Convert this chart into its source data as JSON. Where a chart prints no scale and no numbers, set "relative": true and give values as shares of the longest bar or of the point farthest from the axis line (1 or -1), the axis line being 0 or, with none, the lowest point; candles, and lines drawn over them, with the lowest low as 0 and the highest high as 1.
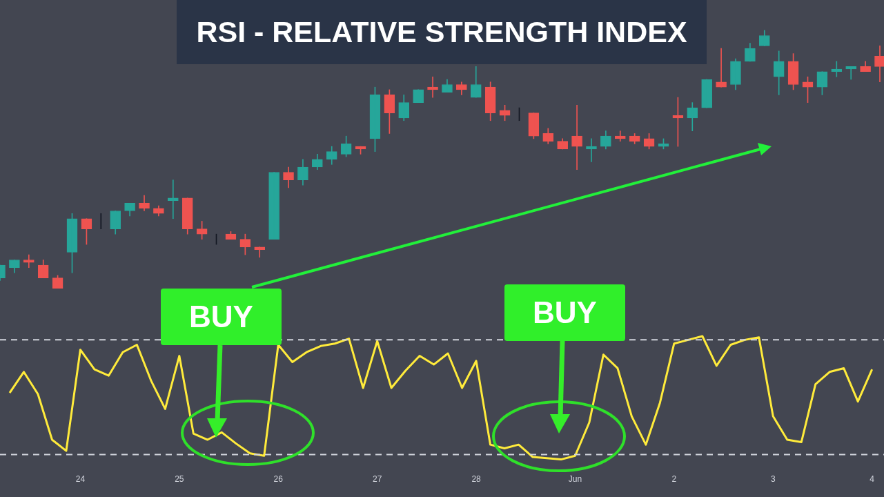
{
  "chart_data": [
    {
      "type": "candlestick",
      "title": "RSI - RELATIVE STRENGTH INDEX",
      "relative": true,
      "categories": [
        null,
        null,
        null,
        null,
        null,
        null,
        null,
        null,
        null,
        null,
        null,
        null,
        null,
        null,
        null,
        null,
        null,
        null,
        null,
        null,
        null,
        null,
        null,
        null,
        null,
        null,
        null,
        null,
        null,
        null,
        null,
        null,
        null,
        null,
        null,
        null,
        null,
        null,
        null,
        null,
        null,
        null,
        null,
        null,
        null,
        null,
        null,
        null,
        null,
        null,
        null,
        null,
        null,
        null,
        null,
        null,
        null,
        null,
        null,
        null,
        null,
        null
      ],
      "ohlc": [
        [
          0.04,
          0.09,
          0.03,
          0.09
        ],
        [
          0.08,
          0.11,
          0.06,
          0.11
        ],
        [
          0.11,
          0.13,
          0.08,
          0.1
        ],
        [
          0.09,
          0.11,
          0.04,
          0.04
        ],
        [
          0.04,
          0.05,
          0,
          0
        ],
        [
          0.14,
          0.29,
          0.06,
          0.27
        ],
        [
          0.27,
          0.27,
          0.17,
          0.23
        ],
        [
          0.23,
          0.29,
          0.23,
          0.23
        ],
        [
          0.23,
          0.3,
          0.21,
          0.3
        ],
        [
          0.3,
          0.33,
          0.28,
          0.33
        ],
        [
          0.33,
          0.36,
          0.3,
          0.31
        ],
        [
          0.31,
          0.32,
          0.28,
          0.29
        ],
        [
          0.34,
          0.42,
          0.27,
          0.35
        ],
        [
          0.35,
          0.35,
          0.21,
          0.23
        ],
        [
          0.23,
          0.26,
          0.19,
          0.21
        ],
        [
          0.21,
          0.21,
          0.17,
          0.21
        ],
        [
          0.21,
          0.22,
          0.19,
          0.19
        ],
        [
          0.19,
          0.21,
          0.13,
          0.16
        ],
        [
          0.16,
          0.16,
          0.12,
          0.15
        ],
        [
          0.19,
          0.45,
          0.19,
          0.45
        ],
        [
          0.45,
          0.47,
          0.39,
          0.42
        ],
        [
          0.42,
          0.5,
          0.4,
          0.47
        ],
        [
          0.47,
          0.52,
          0.46,
          0.5
        ],
        [
          0.5,
          0.55,
          0.48,
          0.53
        ],
        [
          0.52,
          0.59,
          0.51,
          0.56
        ],
        [
          0.55,
          0.55,
          0.52,
          0.54
        ],
        [
          0.58,
          0.78,
          0.53,
          0.75
        ],
        [
          0.75,
          0.77,
          0.6,
          0.68
        ],
        [
          0.66,
          0.75,
          0.65,
          0.72
        ],
        [
          0.72,
          0.77,
          0.72,
          0.77
        ],
        [
          0.78,
          0.82,
          0.74,
          0.77
        ],
        [
          0.76,
          0.81,
          0.76,
          0.79
        ],
        [
          0.79,
          0.8,
          0.75,
          0.77
        ],
        [
          0.74,
          0.86,
          0.74,
          0.79
        ],
        [
          0.78,
          0.8,
          0.65,
          0.68
        ],
        [
          0.69,
          0.71,
          0.65,
          0.67
        ],
        [
          0.67,
          0.7,
          0.65,
          0.67
        ],
        [
          0.68,
          0.68,
          0.58,
          0.59
        ],
        [
          0.6,
          0.62,
          0.56,
          0.57
        ],
        [
          0.57,
          0.58,
          0.54,
          0.54
        ],
        [
          0.59,
          0.71,
          0.46,
          0.55
        ],
        [
          0.54,
          0.58,
          0.49,
          0.55
        ],
        [
          0.55,
          0.61,
          0.54,
          0.59
        ],
        [
          0.59,
          0.61,
          0.57,
          0.58
        ],
        [
          0.59,
          0.6,
          0.56,
          0.57
        ],
        [
          0.58,
          0.6,
          0.54,
          0.55
        ],
        [
          0.55,
          0.58,
          0.54,
          0.56
        ],
        [
          0.67,
          0.74,
          0.55,
          0.66
        ],
        [
          0.66,
          0.72,
          0.61,
          0.7
        ],
        [
          0.7,
          0.81,
          0.7,
          0.81
        ],
        [
          0.8,
          0.93,
          0.78,
          0.78
        ],
        [
          0.79,
          0.89,
          0.77,
          0.88
        ],
        [
          0.88,
          0.95,
          0.88,
          0.93
        ],
        [
          0.94,
          1,
          0.94,
          0.98
        ],
        [
          0.82,
          0.92,
          0.75,
          0.88
        ],
        [
          0.88,
          0.91,
          0.77,
          0.79
        ],
        [
          0.8,
          0.82,
          0.72,
          0.78
        ],
        [
          0.78,
          0.84,
          0.75,
          0.84
        ],
        [
          0.84,
          0.88,
          0.82,
          0.85
        ],
        [
          0.85,
          0.86,
          0.81,
          0.86
        ],
        [
          0.86,
          0.88,
          0.84,
          0.84
        ],
        [
          0.9,
          0.94,
          0.8,
          0.86
        ]
      ],
      "colors": [
        "#26a69a",
        "#26a69a",
        "#ef5350",
        "#ef5350",
        "#ef5350",
        "#26a69a",
        "#ef5350",
        "#131722",
        "#26a69a",
        "#26a69a",
        "#ef5350",
        "#ef5350",
        "#26a69a",
        "#ef5350",
        "#ef5350",
        "#131722",
        "#ef5350",
        "#ef5350",
        "#ef5350",
        "#26a69a",
        "#ef5350",
        "#26a69a",
        "#26a69a",
        "#26a69a",
        "#26a69a",
        "#ef5350",
        "#26a69a",
        "#ef5350",
        "#26a69a",
        "#26a69a",
        "#ef5350",
        "#26a69a",
        "#ef5350",
        "#26a69a",
        "#ef5350",
        "#ef5350",
        "#131722",
        "#ef5350",
        "#ef5350",
        "#ef5350",
        "#ef5350",
        "#26a69a",
        "#26a69a",
        "#ef5350",
        "#ef5350",
        "#ef5350",
        "#26a69a",
        "#ef5350",
        "#26a69a",
        "#26a69a",
        "#ef5350",
        "#26a69a",
        "#26a69a",
        "#26a69a",
        "#26a69a",
        "#ef5350",
        "#ef5350",
        "#26a69a",
        "#26a69a",
        "#26a69a",
        "#ef5350",
        "#ef5350"
      ]
    },
    {
      "type": "line",
      "relative": true,
      "tick_labels": "x",
      "color": "#ffeb3b",
      "categories": [
        null,
        null,
        null,
        null,
        null,
        "24",
        null,
        null,
        null,
        null,
        null,
        null,
        "25",
        null,
        null,
        null,
        null,
        null,
        null,
        "26",
        null,
        null,
        null,
        null,
        null,
        null,
        "27",
        null,
        null,
        null,
        null,
        null,
        null,
        "28",
        null,
        null,
        null,
        null,
        null,
        null,
        "Jun",
        null,
        null,
        null,
        null,
        null,
        null,
        "2",
        null,
        null,
        null,
        null,
        null,
        null,
        "3",
        null,
        null,
        null,
        null,
        null,
        null,
        "4"
      ],
      "values": [
        0.54,
        0.71,
        0.53,
        0.16,
        0.07,
        0.89,
        0.73,
        0.68,
        0.87,
        0.93,
        0.64,
        0.41,
        0.84,
        0.21,
        0.16,
        0.22,
        0.13,
        0.05,
        0.03,
        0.93,
        0.79,
        0.87,
        0.92,
        0.94,
        0.98,
        0.58,
        0.96,
        0.58,
        0.72,
        0.84,
        0.77,
        0.86,
        0.58,
        0.8,
        0.12,
        0.09,
        0.12,
        0.02,
        0.01,
        0,
        0.03,
        0.3,
        0.85,
        0.74,
        0.35,
        0.12,
        0.46,
        0.94,
        0.97,
        1,
        0.76,
        0.93,
        0.97,
        0.99,
        0.35,
        0.16,
        0.14,
        0.61,
        0.71,
        0.74,
        0.47,
        0.73
      ],
      "ref_lines": [
        {
          "axis": "y",
          "value": 0.97,
          "color": "#d1d4dc",
          "line_style": "dashed"
        },
        {
          "axis": "y",
          "value": 0.04,
          "color": "#d1d4dc",
          "line_style": "dashed"
        }
      ],
      "annotations": [
        "BUY",
        "BUY"
      ]
    }
  ]
}
